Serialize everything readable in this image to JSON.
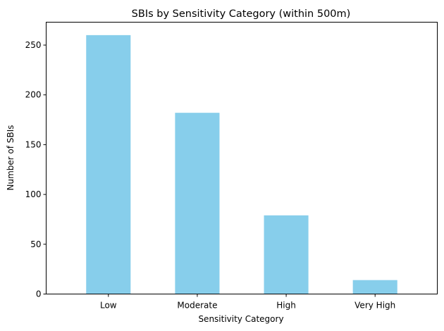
{
  "chart_data": {
    "type": "bar",
    "title": "SBIs by Sensitivity Category (within 500m)",
    "xlabel": "Sensitivity Category",
    "ylabel": "Number of SBIs",
    "categories": [
      "Low",
      "Moderate",
      "High",
      "Very High"
    ],
    "values": [
      260,
      182,
      79,
      14
    ],
    "ylim": [
      0,
      273
    ],
    "yticks": [
      0,
      50,
      100,
      150,
      200,
      250
    ],
    "grid": false,
    "legend": "none",
    "bar_color": "#87ceeb"
  }
}
